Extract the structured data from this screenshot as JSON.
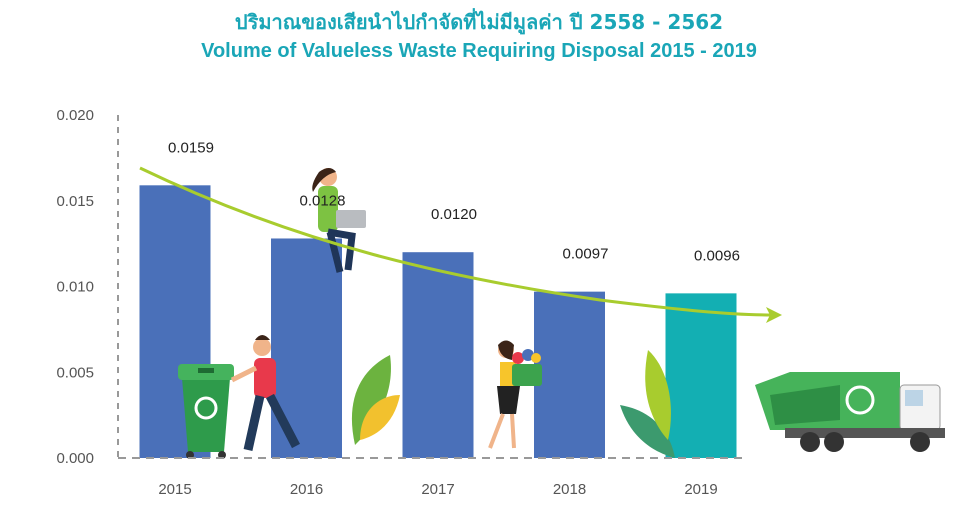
{
  "header": {
    "title_th": "ปริมาณของเสียนำไปกำจัดที่ไม่มีมูลค่า ปี 2558 - 2562",
    "title_en": "Volume of Valueless Waste Requiring Disposal 2015 - 2019"
  },
  "colors": {
    "title": "#1aa6b7",
    "bar": "#4a70b9",
    "bar_highlight": "#13afb3",
    "trend": "#a8cc2e",
    "axis": "#999999"
  },
  "illustrations": [
    "recycle-bin-icon",
    "person-pushing-bin-icon",
    "woman-with-laptop-icon",
    "woman-carrying-recycling-box-icon",
    "plant-icon",
    "plant-icon",
    "garbage-truck-icon"
  ],
  "chart_data": {
    "type": "bar",
    "title": "Volume of Valueless Waste Requiring Disposal 2015 - 2019",
    "xlabel": "",
    "ylabel": "",
    "categories": [
      "2015",
      "2016",
      "2017",
      "2018",
      "2019"
    ],
    "values": [
      0.0159,
      0.0128,
      0.012,
      0.0097,
      0.0096
    ],
    "value_labels": [
      "0.0159",
      "0.0128",
      "0.0120",
      "0.0097",
      "0.0096"
    ],
    "ylim": [
      0,
      0.02
    ],
    "yticks": [
      "0.000",
      "0.005",
      "0.010",
      "0.015",
      "0.020"
    ],
    "grid": false,
    "trendline": "decreasing curve with arrow",
    "highlight_category": "2019"
  }
}
